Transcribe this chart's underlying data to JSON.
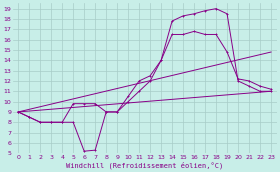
{
  "xlabel": "Windchill (Refroidissement éolien,°C)",
  "background_color": "#c8eee8",
  "grid_color": "#a8ccc8",
  "line_color": "#880088",
  "xlim": [
    -0.5,
    23.5
  ],
  "ylim": [
    5,
    19.5
  ],
  "xticks": [
    0,
    1,
    2,
    3,
    4,
    5,
    6,
    7,
    8,
    9,
    10,
    11,
    12,
    13,
    14,
    15,
    16,
    17,
    18,
    19,
    20,
    21,
    22,
    23
  ],
  "yticks": [
    5,
    6,
    7,
    8,
    9,
    10,
    11,
    12,
    13,
    14,
    15,
    16,
    17,
    18,
    19
  ],
  "line1_x": [
    0,
    1,
    2,
    3,
    4,
    5,
    6,
    7,
    8,
    9,
    10,
    11,
    12,
    13,
    14,
    15,
    16,
    17,
    18,
    19,
    20,
    21,
    22,
    23
  ],
  "line1_y": [
    9,
    8.5,
    8,
    8,
    8,
    8,
    5.2,
    5.3,
    9,
    9,
    10.5,
    12,
    12.5,
    14,
    17.8,
    18.3,
    18.5,
    18.8,
    19,
    18.5,
    12,
    11.5,
    11,
    11
  ],
  "line2_x": [
    0,
    1,
    2,
    3,
    4,
    5,
    6,
    7,
    8,
    9,
    10,
    11,
    12,
    13,
    14,
    15,
    16,
    17,
    18,
    19,
    20,
    21,
    22,
    23
  ],
  "line2_y": [
    9,
    8.5,
    8,
    8,
    8,
    9.8,
    9.8,
    9.8,
    9,
    9,
    10,
    11,
    12,
    14,
    16.5,
    16.5,
    16.8,
    16.5,
    16.5,
    14.8,
    12.2,
    12,
    11.5,
    11.2
  ],
  "line3_x": [
    0,
    23
  ],
  "line3_y": [
    9,
    11
  ],
  "line4_x": [
    0,
    23
  ],
  "line4_y": [
    9,
    14.8
  ]
}
